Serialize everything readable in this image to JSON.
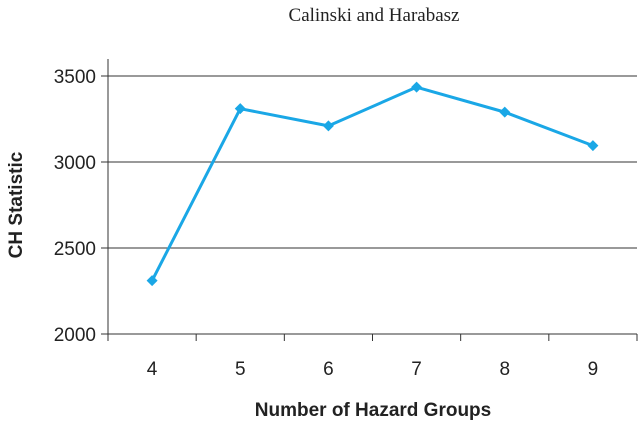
{
  "chart_data": {
    "type": "line",
    "title": "Calinski and Harabasz",
    "xlabel": "Number of Hazard Groups",
    "ylabel": "CH Statistic",
    "categories": [
      "4",
      "5",
      "6",
      "7",
      "8",
      "9"
    ],
    "series": [
      {
        "values": [
          2310,
          3310,
          3210,
          3435,
          3290,
          3095
        ]
      }
    ],
    "ylim": [
      2000,
      3500
    ],
    "yticks": [
      "2000",
      "2500",
      "3000",
      "3500"
    ],
    "grid": true,
    "line_color": "#1aa7e6",
    "axis_color": "#333333"
  }
}
